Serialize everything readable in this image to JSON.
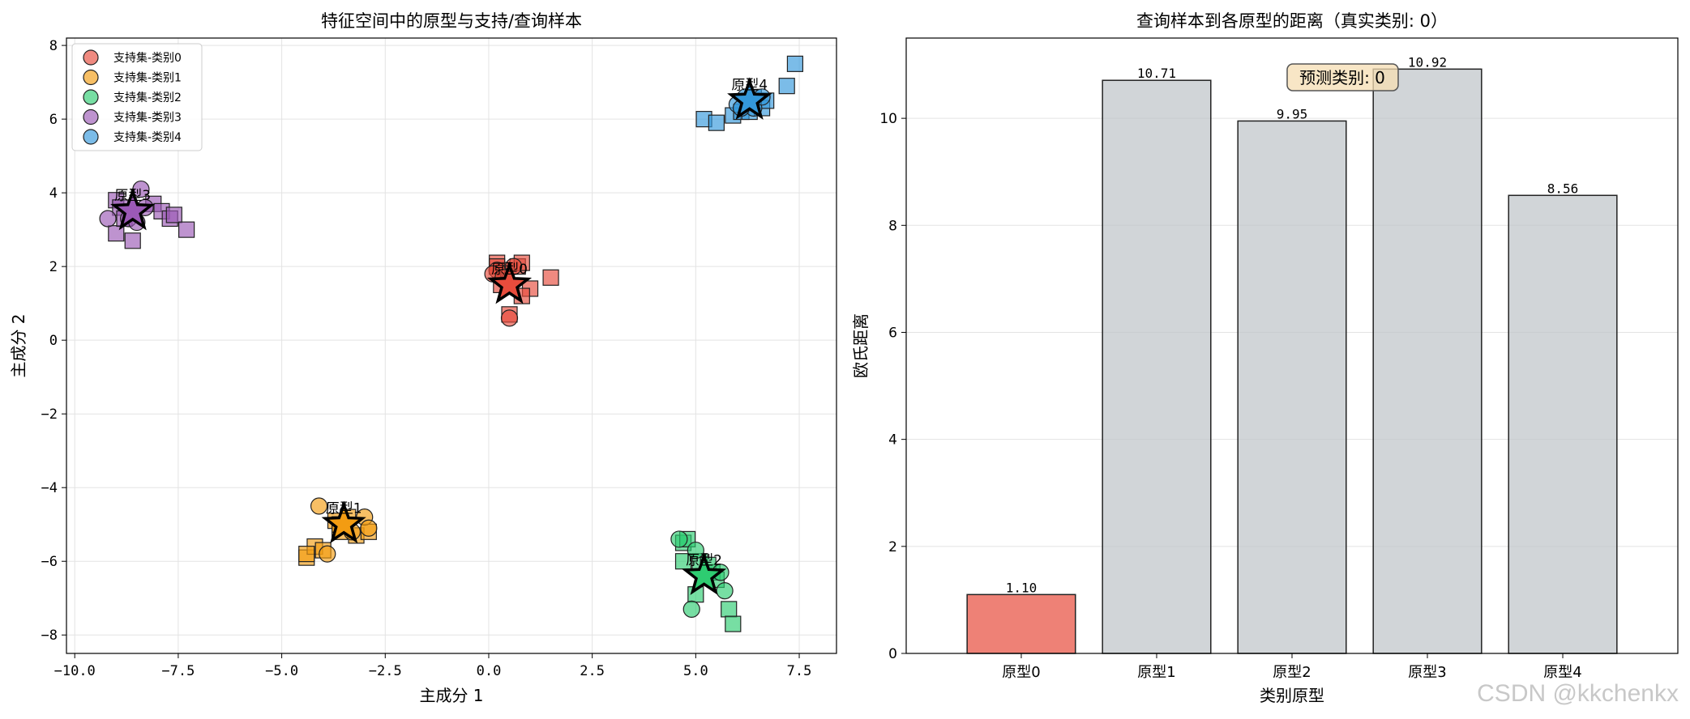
{
  "chart_data": [
    {
      "type": "scatter",
      "title": "特征空间中的原型与支持/查询样本",
      "xlabel": "主成分 1",
      "ylabel": "主成分 2",
      "xlim": [
        -10.2,
        8.4
      ],
      "ylim": [
        -8.5,
        8.2
      ],
      "xticks": [
        -10.0,
        -7.5,
        -5.0,
        -2.5,
        0.0,
        2.5,
        5.0,
        7.5
      ],
      "xtick_labels": [
        "−10.0",
        "−7.5",
        "−5.0",
        "−2.5",
        "0.0",
        "2.5",
        "5.0",
        "7.5"
      ],
      "yticks": [
        -8,
        -6,
        -4,
        -2,
        0,
        2,
        4,
        6,
        8
      ],
      "ytick_labels": [
        "−8",
        "−6",
        "−4",
        "−2",
        "0",
        "2",
        "4",
        "6",
        "8"
      ],
      "grid": true,
      "legend_position": "top-left",
      "legend": [
        "支持集-类别0",
        "支持集-类别1",
        "支持集-类别2",
        "支持集-类别3",
        "支持集-类别4"
      ],
      "series": [
        {
          "class": 0,
          "color": "#e74c3c",
          "prototype_label": "原型0",
          "prototype": [
            0.5,
            1.5
          ],
          "support": [
            [
              0.2,
              1.9
            ],
            [
              0.1,
              1.8
            ],
            [
              0.5,
              0.6
            ],
            [
              0.35,
              1.7
            ],
            [
              0.6,
              2.0
            ]
          ],
          "query": [
            [
              0.2,
              2.1
            ],
            [
              0.4,
              1.9
            ],
            [
              0.7,
              2.0
            ],
            [
              0.8,
              2.1
            ],
            [
              0.3,
              1.5
            ],
            [
              1.0,
              1.4
            ],
            [
              1.5,
              1.7
            ],
            [
              0.8,
              1.2
            ],
            [
              0.5,
              0.7
            ],
            [
              0.2,
              2.0
            ]
          ]
        },
        {
          "class": 1,
          "color": "#f39c12",
          "prototype_label": "原型1",
          "prototype": [
            -3.5,
            -5.0
          ],
          "support": [
            [
              -4.1,
              -4.5
            ],
            [
              -3.0,
              -4.8
            ],
            [
              -3.9,
              -5.8
            ],
            [
              -2.9,
              -5.1
            ],
            [
              -3.3,
              -5.2
            ]
          ],
          "query": [
            [
              -4.4,
              -5.9
            ],
            [
              -4.2,
              -5.6
            ],
            [
              -4.0,
              -5.7
            ],
            [
              -3.7,
              -4.9
            ],
            [
              -3.6,
              -5.2
            ],
            [
              -3.2,
              -5.3
            ],
            [
              -2.9,
              -5.2
            ],
            [
              -3.4,
              -4.8
            ],
            [
              -4.4,
              -5.8
            ],
            [
              -3.6,
              -5.0
            ]
          ]
        },
        {
          "class": 2,
          "color": "#2ecc71",
          "prototype_label": "原型2",
          "prototype": [
            5.2,
            -6.4
          ],
          "support": [
            [
              4.6,
              -5.4
            ],
            [
              5.6,
              -6.3
            ],
            [
              4.9,
              -7.3
            ],
            [
              5.7,
              -6.8
            ],
            [
              5.0,
              -5.7
            ]
          ],
          "query": [
            [
              4.7,
              -5.5
            ],
            [
              4.8,
              -5.4
            ],
            [
              4.7,
              -6.0
            ],
            [
              5.1,
              -6.0
            ],
            [
              5.0,
              -6.9
            ],
            [
              5.4,
              -6.3
            ],
            [
              5.5,
              -6.5
            ],
            [
              5.8,
              -7.3
            ],
            [
              5.9,
              -7.7
            ],
            [
              5.3,
              -6.1
            ]
          ]
        },
        {
          "class": 3,
          "color": "#9b59b6",
          "prototype_label": "原型3",
          "prototype": [
            -8.6,
            3.5
          ],
          "support": [
            [
              -9.2,
              3.3
            ],
            [
              -8.7,
              3.3
            ],
            [
              -8.5,
              3.2
            ],
            [
              -8.4,
              4.1
            ],
            [
              -8.3,
              3.6
            ]
          ],
          "query": [
            [
              -9.0,
              3.8
            ],
            [
              -8.9,
              3.6
            ],
            [
              -9.0,
              2.9
            ],
            [
              -8.6,
              2.7
            ],
            [
              -8.1,
              3.7
            ],
            [
              -7.9,
              3.5
            ],
            [
              -7.7,
              3.3
            ],
            [
              -7.6,
              3.4
            ],
            [
              -7.3,
              3.0
            ],
            [
              -8.8,
              3.3
            ]
          ]
        },
        {
          "class": 4,
          "color": "#3498db",
          "prototype_label": "原型4",
          "prototype": [
            6.3,
            6.5
          ],
          "support": [
            [
              6.0,
              6.4
            ],
            [
              6.2,
              6.6
            ],
            [
              6.4,
              6.3
            ],
            [
              6.6,
              6.6
            ],
            [
              6.1,
              6.3
            ]
          ],
          "query": [
            [
              5.2,
              6.0
            ],
            [
              5.5,
              5.9
            ],
            [
              5.9,
              6.1
            ],
            [
              6.1,
              6.2
            ],
            [
              6.3,
              6.2
            ],
            [
              6.6,
              6.3
            ],
            [
              6.7,
              6.5
            ],
            [
              7.2,
              6.9
            ],
            [
              7.4,
              7.5
            ],
            [
              6.4,
              6.6
            ]
          ]
        }
      ]
    },
    {
      "type": "bar",
      "title": "查询样本到各原型的距离（真实类别: 0）",
      "xlabel": "类别原型",
      "ylabel": "欧氏距离",
      "categories": [
        "原型0",
        "原型1",
        "原型2",
        "原型3",
        "原型4"
      ],
      "values": [
        1.1,
        10.71,
        9.95,
        10.92,
        8.56
      ],
      "value_labels": [
        "1.10",
        "10.71",
        "9.95",
        "10.92",
        "8.56"
      ],
      "colors": [
        "#e74c3c",
        "#bdc3c7",
        "#bdc3c7",
        "#bdc3c7",
        "#bdc3c7"
      ],
      "ylim": [
        0,
        11.5
      ],
      "yticks": [
        0,
        2,
        4,
        6,
        8,
        10
      ],
      "grid": true,
      "annotation": "预测类别: 0",
      "annotation_color": "#2ecc71"
    }
  ],
  "watermark": "CSDN @kkchenkx"
}
